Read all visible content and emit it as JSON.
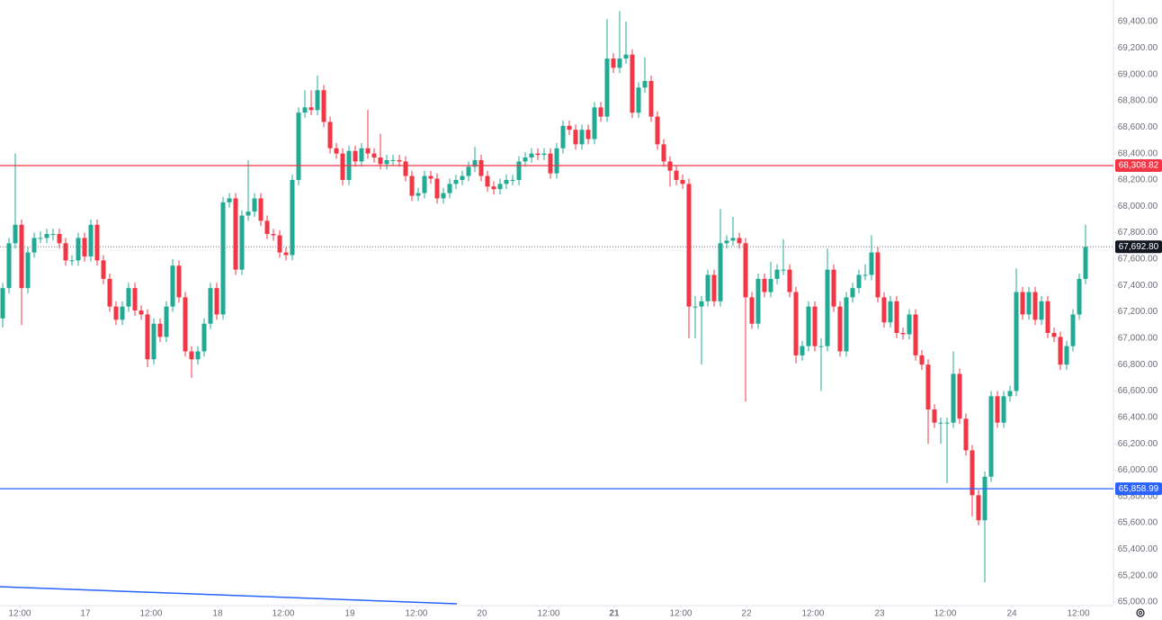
{
  "chart_data": {
    "type": "candlestick",
    "up_color": "#22ab94",
    "down_color": "#f23645",
    "xlim": [
      -0.43,
      176.43
    ],
    "xticks": [
      {
        "value": 2.71,
        "label": "12:00"
      },
      {
        "value": 13.14,
        "label": "17"
      },
      {
        "value": 23.57,
        "label": "12:00"
      },
      {
        "value": 34.14,
        "label": "18"
      },
      {
        "value": 44.57,
        "label": "12:00"
      },
      {
        "value": 55.14,
        "label": "19"
      },
      {
        "value": 65.71,
        "label": "12:00"
      },
      {
        "value": 76.14,
        "label": "20"
      },
      {
        "value": 86.71,
        "label": "12:00"
      },
      {
        "value": 97.14,
        "label": "21",
        "bold": true
      },
      {
        "value": 107.71,
        "label": "12:00"
      },
      {
        "value": 118.14,
        "label": "22"
      },
      {
        "value": 128.71,
        "label": "12:00"
      },
      {
        "value": 139.29,
        "label": "23"
      },
      {
        "value": 149.71,
        "label": "12:00"
      },
      {
        "value": 160.29,
        "label": "24"
      },
      {
        "value": 170.86,
        "label": "12:00"
      }
    ],
    "ylim": [
      64973,
      69564
    ],
    "yticks": [
      {
        "value": 65000,
        "label": "65,000.00"
      },
      {
        "value": 65200,
        "label": "65,200.00"
      },
      {
        "value": 65400,
        "label": "65,400.00"
      },
      {
        "value": 65600,
        "label": "65,600.00"
      },
      {
        "value": 65800,
        "label": "65,800.00"
      },
      {
        "value": 66000,
        "label": "66,000.00"
      },
      {
        "value": 66200,
        "label": "66,200.00"
      },
      {
        "value": 66400,
        "label": "66,400.00"
      },
      {
        "value": 66600,
        "label": "66,600.00"
      },
      {
        "value": 66800,
        "label": "66,800.00"
      },
      {
        "value": 67000,
        "label": "67,000.00"
      },
      {
        "value": 67200,
        "label": "67,200.00"
      },
      {
        "value": 67400,
        "label": "67,400.00"
      },
      {
        "value": 67600,
        "label": "67,600.00"
      },
      {
        "value": 67800,
        "label": "67,800.00"
      },
      {
        "value": 68000,
        "label": "68,000.00"
      },
      {
        "value": 68200,
        "label": "68,200.00"
      },
      {
        "value": 68400,
        "label": "68,400.00"
      },
      {
        "value": 68600,
        "label": "68,600.00"
      },
      {
        "value": 68800,
        "label": "68,800.00"
      },
      {
        "value": 69000,
        "label": "69,000.00"
      },
      {
        "value": 69200,
        "label": "69,200.00"
      },
      {
        "value": 69400,
        "label": "69,400.00"
      }
    ],
    "price_lines": [
      {
        "value": 68308.82,
        "label": "68,308.82",
        "color": "#f23645",
        "style": "solid"
      },
      {
        "value": 65858.99,
        "label": "65,858.99",
        "color": "#2962ff",
        "style": "solid"
      },
      {
        "value": 67692.8,
        "label": "67,692.80",
        "color": "#131722",
        "style": "dotted"
      }
    ],
    "ohlc": [
      [
        67150,
        67420,
        67080,
        67380
      ],
      [
        67380,
        67760,
        67340,
        67720
      ],
      [
        67720,
        68400,
        67680,
        67860
      ],
      [
        67860,
        67900,
        67100,
        67380
      ],
      [
        67380,
        67690,
        67340,
        67650
      ],
      [
        67650,
        67800,
        67610,
        67760
      ],
      [
        67760,
        67810,
        67720,
        67760
      ],
      [
        67760,
        67830,
        67720,
        67790
      ],
      [
        67790,
        67830,
        67740,
        67790
      ],
      [
        67790,
        67830,
        67680,
        67720
      ],
      [
        67720,
        67760,
        67550,
        67590
      ],
      [
        67590,
        67630,
        67550,
        67590
      ],
      [
        67590,
        67800,
        67550,
        67760
      ],
      [
        67760,
        67800,
        67580,
        67620
      ],
      [
        67620,
        67900,
        67580,
        67860
      ],
      [
        67860,
        67900,
        67550,
        67590
      ],
      [
        67590,
        67630,
        67410,
        67450
      ],
      [
        67450,
        67490,
        67200,
        67240
      ],
      [
        67240,
        67280,
        67100,
        67140
      ],
      [
        67140,
        67280,
        67100,
        67240
      ],
      [
        67240,
        67420,
        67200,
        67380
      ],
      [
        67380,
        67420,
        67170,
        67210
      ],
      [
        67210,
        67250,
        67140,
        67180
      ],
      [
        67180,
        67220,
        66780,
        66840
      ],
      [
        66840,
        67150,
        66800,
        67110
      ],
      [
        67110,
        67150,
        66970,
        67010
      ],
      [
        67010,
        67280,
        66970,
        67240
      ],
      [
        67240,
        67600,
        67200,
        67550
      ],
      [
        67550,
        67590,
        67270,
        67310
      ],
      [
        67310,
        67350,
        66860,
        66900
      ],
      [
        66900,
        66940,
        66700,
        66840
      ],
      [
        66840,
        66940,
        66800,
        66900
      ],
      [
        66900,
        67150,
        66860,
        67110
      ],
      [
        67110,
        67420,
        67070,
        67380
      ],
      [
        67380,
        67420,
        67140,
        67180
      ],
      [
        67180,
        68070,
        67140,
        68030
      ],
      [
        68030,
        68100,
        67990,
        68060
      ],
      [
        68060,
        68100,
        67480,
        67520
      ],
      [
        67520,
        67970,
        67480,
        67930
      ],
      [
        67930,
        68350,
        67890,
        67960
      ],
      [
        67960,
        68100,
        67920,
        68060
      ],
      [
        68060,
        68100,
        67850,
        67890
      ],
      [
        67890,
        67930,
        67750,
        67790
      ],
      [
        67790,
        67830,
        67740,
        67780
      ],
      [
        67780,
        67820,
        67610,
        67650
      ],
      [
        67650,
        67690,
        67590,
        67630
      ],
      [
        67630,
        68240,
        67590,
        68200
      ],
      [
        68200,
        68750,
        68160,
        68710
      ],
      [
        68710,
        68880,
        68670,
        68750
      ],
      [
        68750,
        68880,
        68690,
        68730
      ],
      [
        68730,
        68990,
        68690,
        68880
      ],
      [
        68880,
        68920,
        68600,
        68640
      ],
      [
        68640,
        68680,
        68400,
        68440
      ],
      [
        68440,
        68480,
        68360,
        68400
      ],
      [
        68400,
        68440,
        68160,
        68200
      ],
      [
        68200,
        68460,
        68160,
        68420
      ],
      [
        68420,
        68460,
        68300,
        68340
      ],
      [
        68340,
        68480,
        68300,
        68440
      ],
      [
        68440,
        68730,
        68360,
        68400
      ],
      [
        68400,
        68440,
        68330,
        68370
      ],
      [
        68370,
        68550,
        68280,
        68320
      ],
      [
        68320,
        68390,
        68280,
        68350
      ],
      [
        68350,
        68390,
        68310,
        68350
      ],
      [
        68350,
        68390,
        68300,
        68340
      ],
      [
        68340,
        68380,
        68190,
        68230
      ],
      [
        68230,
        68270,
        68040,
        68080
      ],
      [
        68080,
        68140,
        68040,
        68100
      ],
      [
        68100,
        68270,
        68060,
        68230
      ],
      [
        68230,
        68270,
        68170,
        68210
      ],
      [
        68210,
        68250,
        68020,
        68060
      ],
      [
        68060,
        68140,
        68020,
        68100
      ],
      [
        68100,
        68210,
        68060,
        68170
      ],
      [
        68170,
        68240,
        68130,
        68200
      ],
      [
        68200,
        68270,
        68160,
        68230
      ],
      [
        68230,
        68340,
        68190,
        68300
      ],
      [
        68300,
        68450,
        68260,
        68350
      ],
      [
        68350,
        68390,
        68190,
        68230
      ],
      [
        68230,
        68270,
        68110,
        68150
      ],
      [
        68150,
        68190,
        68090,
        68130
      ],
      [
        68130,
        68210,
        68090,
        68170
      ],
      [
        68170,
        68240,
        68130,
        68200
      ],
      [
        68200,
        68240,
        68160,
        68200
      ],
      [
        68200,
        68380,
        68160,
        68340
      ],
      [
        68340,
        68410,
        68300,
        68370
      ],
      [
        68370,
        68440,
        68330,
        68400
      ],
      [
        68400,
        68440,
        68350,
        68390
      ],
      [
        68390,
        68440,
        68350,
        68400
      ],
      [
        68400,
        68440,
        68210,
        68250
      ],
      [
        68250,
        68480,
        68210,
        68440
      ],
      [
        68440,
        68650,
        68400,
        68610
      ],
      [
        68610,
        68650,
        68540,
        68580
      ],
      [
        68580,
        68620,
        68430,
        68470
      ],
      [
        68470,
        68620,
        68430,
        68580
      ],
      [
        68580,
        68620,
        68470,
        68510
      ],
      [
        68510,
        68790,
        68470,
        68750
      ],
      [
        68750,
        68790,
        68640,
        68680
      ],
      [
        68680,
        69420,
        68640,
        69120
      ],
      [
        69120,
        69160,
        69010,
        69050
      ],
      [
        69050,
        69480,
        69010,
        69120
      ],
      [
        69120,
        69400,
        69080,
        69150
      ],
      [
        69150,
        69190,
        68670,
        68710
      ],
      [
        68710,
        68940,
        68670,
        68900
      ],
      [
        68900,
        69130,
        68860,
        68950
      ],
      [
        68950,
        68990,
        68640,
        68680
      ],
      [
        68680,
        68720,
        68430,
        68470
      ],
      [
        68470,
        68510,
        68300,
        68340
      ],
      [
        68340,
        68380,
        68150,
        68270
      ],
      [
        68270,
        68310,
        68160,
        68200
      ],
      [
        68200,
        68240,
        68130,
        68170
      ],
      [
        68170,
        68210,
        67000,
        67240
      ],
      [
        67240,
        67320,
        67000,
        67240
      ],
      [
        67240,
        67320,
        66800,
        67280
      ],
      [
        67280,
        67520,
        67240,
        67480
      ],
      [
        67480,
        67520,
        67240,
        67280
      ],
      [
        67280,
        67980,
        67240,
        67720
      ],
      [
        67720,
        67780,
        67680,
        67740
      ],
      [
        67740,
        67920,
        67700,
        67760
      ],
      [
        67760,
        67800,
        67680,
        67720
      ],
      [
        67720,
        67760,
        66520,
        67310
      ],
      [
        67310,
        67350,
        67070,
        67110
      ],
      [
        67110,
        67490,
        67070,
        67450
      ],
      [
        67450,
        67490,
        67310,
        67350
      ],
      [
        67350,
        67580,
        67310,
        67450
      ],
      [
        67450,
        67560,
        67410,
        67520
      ],
      [
        67520,
        67750,
        67480,
        67520
      ],
      [
        67520,
        67560,
        67310,
        67350
      ],
      [
        67350,
        67390,
        66810,
        66870
      ],
      [
        66870,
        66980,
        66830,
        66940
      ],
      [
        66940,
        67280,
        66900,
        67240
      ],
      [
        67240,
        67280,
        66900,
        66940
      ],
      [
        66940,
        67000,
        66600,
        66940
      ],
      [
        66940,
        67680,
        66900,
        67520
      ],
      [
        67520,
        67560,
        67200,
        67240
      ],
      [
        67240,
        67280,
        66860,
        66900
      ],
      [
        66900,
        67350,
        66860,
        67310
      ],
      [
        67310,
        67420,
        67270,
        67380
      ],
      [
        67380,
        67520,
        67340,
        67480
      ],
      [
        67480,
        67560,
        67440,
        67480
      ],
      [
        67480,
        67780,
        67440,
        67650
      ],
      [
        67650,
        67690,
        67270,
        67310
      ],
      [
        67310,
        67350,
        67080,
        67120
      ],
      [
        67120,
        67320,
        67080,
        67280
      ],
      [
        67280,
        67320,
        67000,
        67040
      ],
      [
        67040,
        67080,
        66990,
        67030
      ],
      [
        67030,
        67220,
        66990,
        67180
      ],
      [
        67180,
        67220,
        66830,
        66870
      ],
      [
        66870,
        66910,
        66760,
        66800
      ],
      [
        66800,
        66840,
        66200,
        66460
      ],
      [
        66460,
        66500,
        66320,
        66360
      ],
      [
        66360,
        66400,
        66200,
        66360
      ],
      [
        66360,
        66400,
        65900,
        66360
      ],
      [
        66360,
        66900,
        66320,
        66730
      ],
      [
        66730,
        66770,
        66350,
        66390
      ],
      [
        66390,
        66430,
        66110,
        66150
      ],
      [
        66150,
        66190,
        65650,
        65810
      ],
      [
        65810,
        65850,
        65580,
        65620
      ],
      [
        65620,
        65990,
        65150,
        65950
      ],
      [
        65950,
        66600,
        65910,
        66560
      ],
      [
        66560,
        66600,
        66320,
        66360
      ],
      [
        66360,
        66600,
        66320,
        66560
      ],
      [
        66560,
        66640,
        66520,
        66600
      ],
      [
        66600,
        67530,
        66560,
        67350
      ],
      [
        67350,
        67390,
        67140,
        67180
      ],
      [
        67180,
        67390,
        67140,
        67350
      ],
      [
        67350,
        67390,
        67100,
        67140
      ],
      [
        67140,
        67320,
        67100,
        67280
      ],
      [
        67280,
        67320,
        67000,
        67040
      ],
      [
        67040,
        67080,
        66970,
        67010
      ],
      [
        67010,
        67050,
        66760,
        66800
      ],
      [
        66800,
        66980,
        66760,
        66940
      ],
      [
        66940,
        67220,
        66900,
        67180
      ],
      [
        67180,
        67490,
        67140,
        67450
      ],
      [
        67450,
        67860,
        67410,
        67692.8
      ]
    ]
  }
}
